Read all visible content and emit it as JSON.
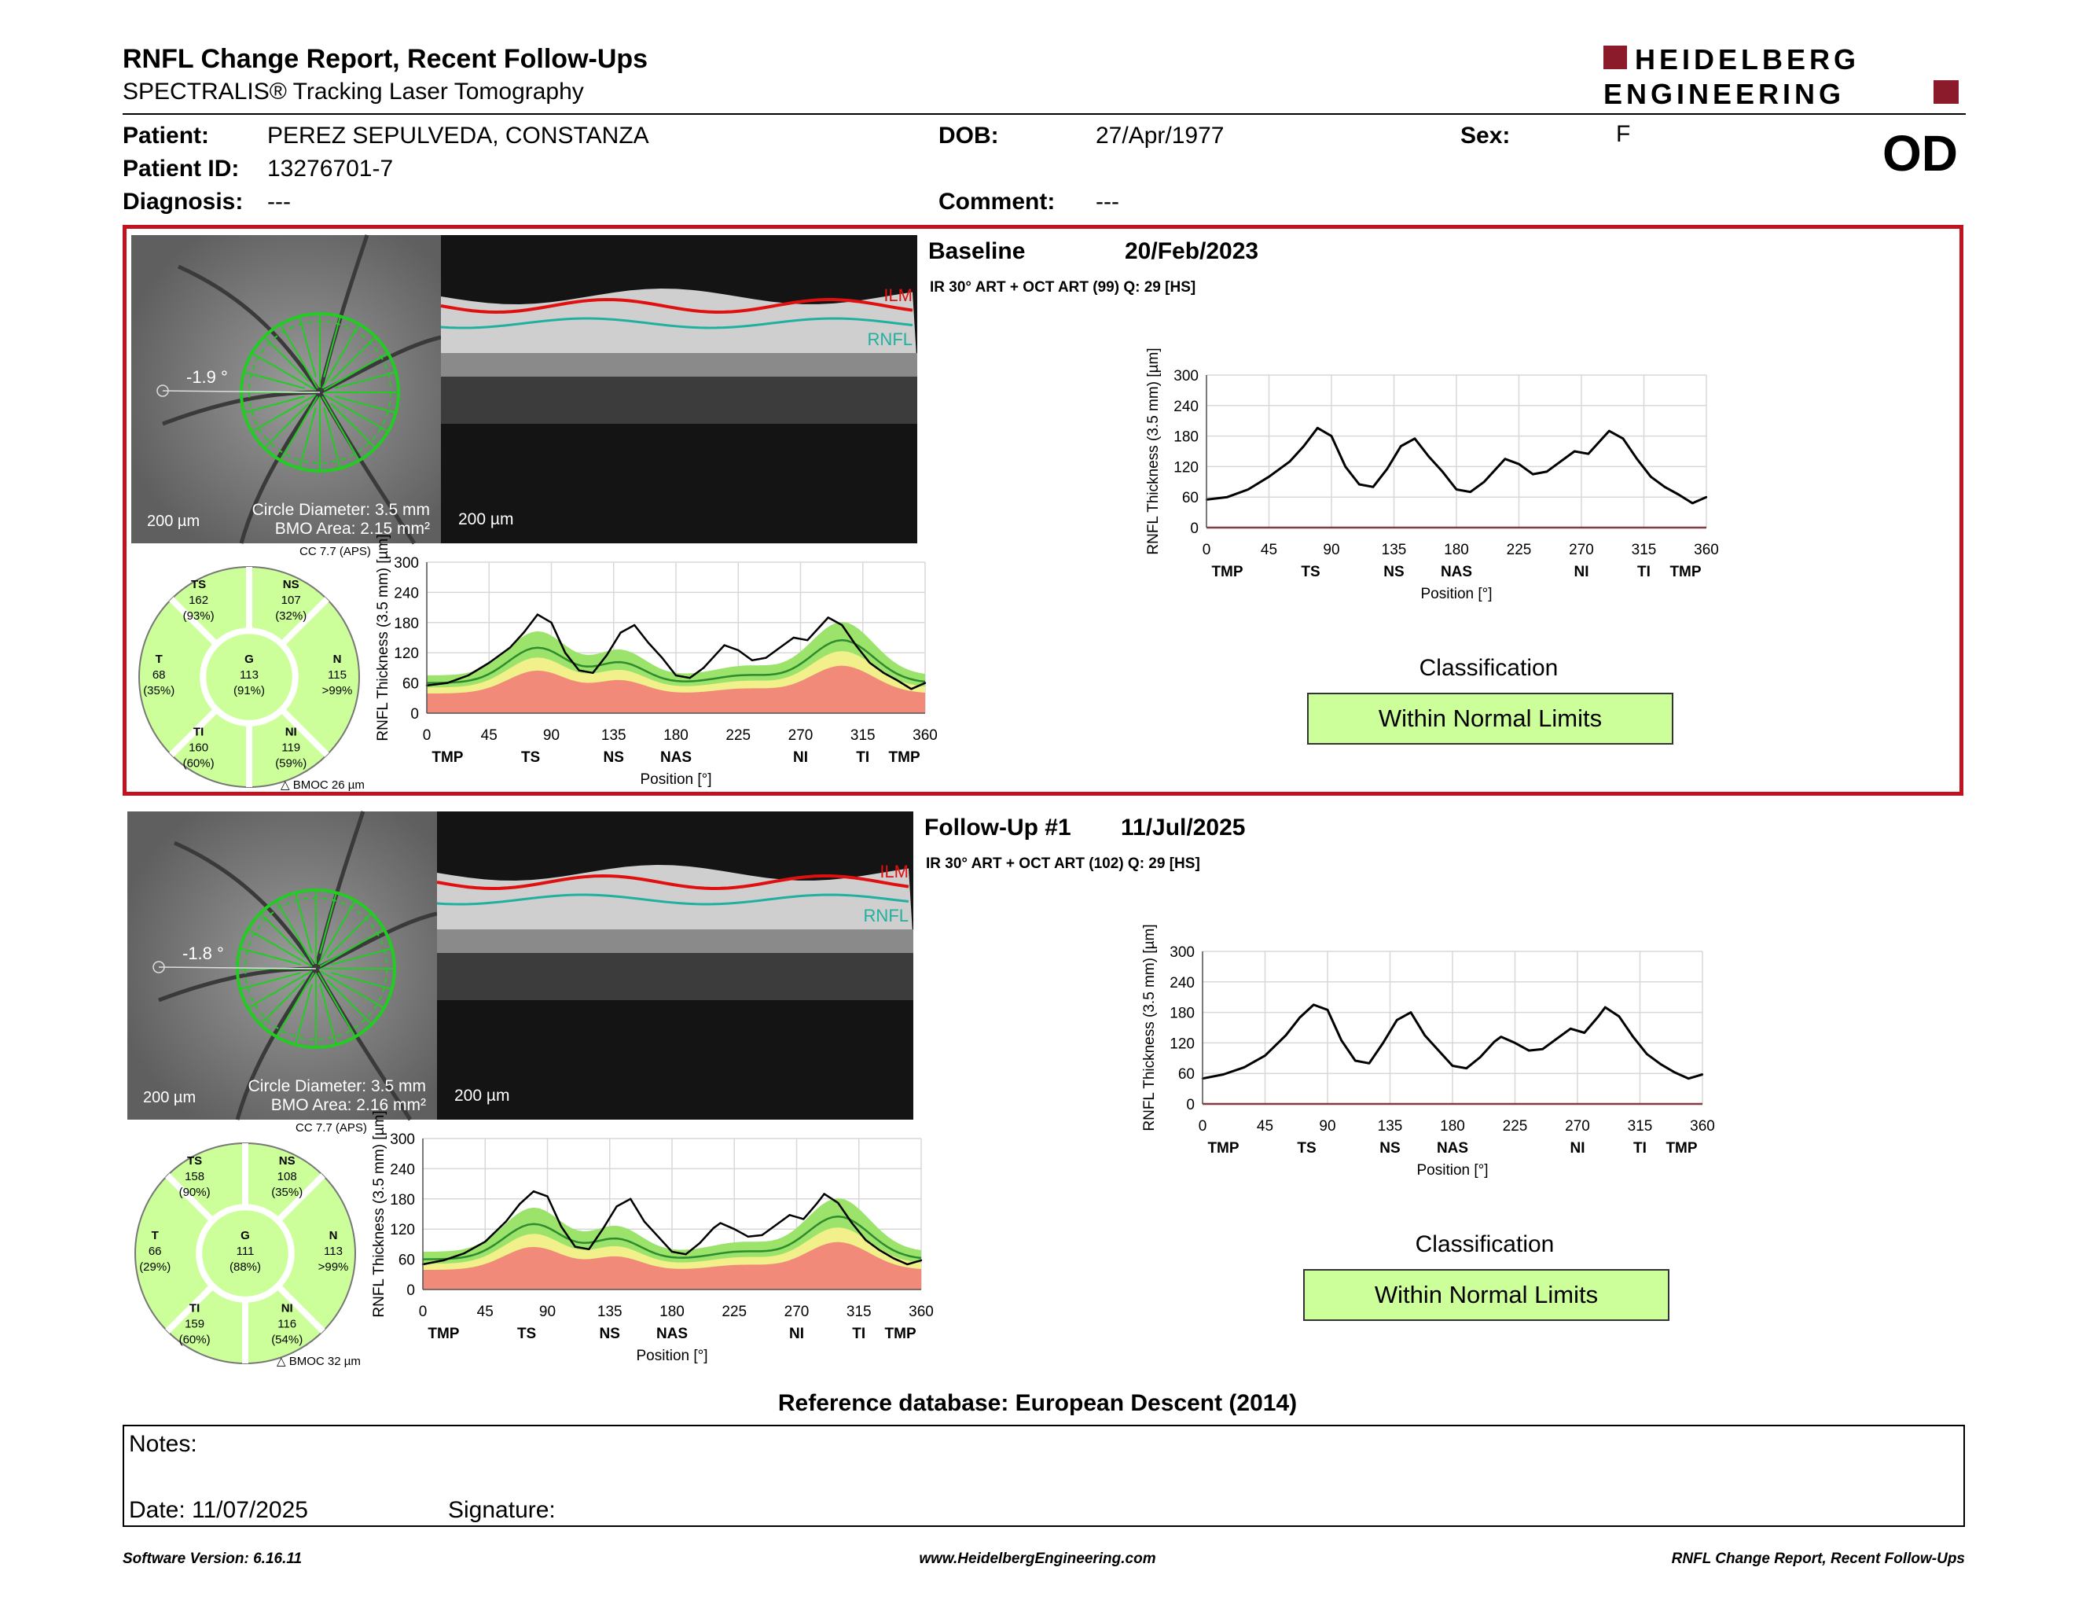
{
  "header": {
    "title": "RNFL Change Report, Recent Follow-Ups",
    "subtitle": "SPECTRALIS® Tracking Laser Tomography",
    "logo_line1": "HEIDELBERG",
    "logo_line2": "ENGINEERING",
    "eye": "OD"
  },
  "patient": {
    "patient_label": "Patient:",
    "patient_name": "PEREZ SEPULVEDA, CONSTANZA",
    "id_label": "Patient ID:",
    "id_value": "13276701-7",
    "diagnosis_label": "Diagnosis:",
    "diagnosis_value": "---",
    "dob_label": "DOB:",
    "dob_value": "27/Apr/1977",
    "comment_label": "Comment:",
    "comment_value": "---",
    "sex_label": "Sex:",
    "sex_value": "F"
  },
  "colors": {
    "frame": "#c1121f",
    "green_band": "#9be36b",
    "yellow_band": "#f2f08a",
    "red_band": "#f28a7a",
    "sector_fill": "#ccff99",
    "ilm": "#e01010",
    "rnfl": "#20b0a0"
  },
  "axes": {
    "y_ticks": [
      "300",
      "240",
      "180",
      "120",
      "60",
      "0"
    ],
    "x_ticks": [
      "0",
      "45",
      "90",
      "135",
      "180",
      "225",
      "270",
      "315",
      "360"
    ],
    "regions": [
      "TMP",
      "TS",
      "NS",
      "NAS",
      "NI",
      "TI",
      "TMP"
    ],
    "ylabel": "RNFL Thickness (3.5 mm) [µm]",
    "xlabel": "Position [°]"
  },
  "visits": [
    {
      "heading": "Baseline",
      "date": "20/Feb/2023",
      "scan_info": "IR 30° ART + OCT ART (99) Q: 29 [HS]",
      "angle": "-1.9 °",
      "scale_fundus": "200 µm",
      "scale_bscan": "200 µm",
      "circle_diameter": "Circle Diameter: 3.5 mm",
      "bmo_area": "BMO Area: 2.15 mm²",
      "cc": "CC 7.7 (APS)",
      "bmoc": "BMOC 26 µm",
      "ilm_label": "ILM",
      "rnfl_label": "RNFL",
      "sectors": {
        "TS": {
          "name": "TS",
          "value": "162",
          "pct": "(93%)"
        },
        "NS": {
          "name": "NS",
          "value": "107",
          "pct": "(32%)"
        },
        "T": {
          "name": "T",
          "value": "68",
          "pct": "(35%)"
        },
        "G": {
          "name": "G",
          "value": "113",
          "pct": "(91%)"
        },
        "N": {
          "name": "N",
          "value": "115",
          "pct": ">99%"
        },
        "TI": {
          "name": "TI",
          "value": "160",
          "pct": "(60%)"
        },
        "NI": {
          "name": "NI",
          "value": "119",
          "pct": "(59%)"
        }
      },
      "classification_label": "Classification",
      "classification": "Within Normal Limits"
    },
    {
      "heading": "Follow-Up #1",
      "date": "11/Jul/2025",
      "scan_info": "IR 30° ART + OCT ART (102) Q: 29 [HS]",
      "angle": "-1.8 °",
      "scale_fundus": "200 µm",
      "scale_bscan": "200 µm",
      "circle_diameter": "Circle Diameter: 3.5 mm",
      "bmo_area": "BMO Area: 2.16 mm²",
      "cc": "CC 7.7 (APS)",
      "bmoc": "BMOC 32 µm",
      "ilm_label": "ILM",
      "rnfl_label": "RNFL",
      "sectors": {
        "TS": {
          "name": "TS",
          "value": "158",
          "pct": "(90%)"
        },
        "NS": {
          "name": "NS",
          "value": "108",
          "pct": "(35%)"
        },
        "T": {
          "name": "T",
          "value": "66",
          "pct": "(29%)"
        },
        "G": {
          "name": "G",
          "value": "111",
          "pct": "(88%)"
        },
        "N": {
          "name": "N",
          "value": "113",
          "pct": ">99%"
        },
        "TI": {
          "name": "TI",
          "value": "159",
          "pct": "(60%)"
        },
        "NI": {
          "name": "NI",
          "value": "116",
          "pct": "(54%)"
        }
      },
      "classification_label": "Classification",
      "classification": "Within Normal Limits"
    }
  ],
  "chart_data": [
    {
      "type": "line",
      "title": "",
      "xlabel": "Position [°]",
      "ylabel": "RNFL Thickness (3.5 mm) [µm]",
      "xlim": [
        0,
        360
      ],
      "ylim": [
        0,
        300
      ],
      "x": [
        0,
        15,
        30,
        45,
        60,
        70,
        80,
        90,
        100,
        110,
        120,
        130,
        140,
        150,
        160,
        170,
        180,
        190,
        200,
        210,
        215,
        225,
        235,
        245,
        255,
        265,
        275,
        285,
        290,
        300,
        310,
        320,
        330,
        340,
        350,
        360
      ],
      "series": [
        {
          "values": [
            55,
            60,
            75,
            100,
            130,
            160,
            196,
            180,
            120,
            85,
            80,
            115,
            160,
            175,
            140,
            110,
            75,
            70,
            90,
            120,
            135,
            125,
            105,
            110,
            130,
            150,
            145,
            175,
            190,
            175,
            135,
            100,
            80,
            65,
            48,
            60
          ]
        }
      ]
    },
    {
      "type": "line",
      "title": "",
      "xlabel": "Position [°]",
      "ylabel": "RNFL Thickness (3.5 mm) [µm]",
      "xlim": [
        0,
        360
      ],
      "ylim": [
        0,
        300
      ],
      "x": [
        0,
        15,
        30,
        45,
        60,
        70,
        80,
        90,
        100,
        110,
        120,
        130,
        140,
        150,
        160,
        170,
        180,
        190,
        200,
        210,
        215,
        225,
        235,
        245,
        255,
        265,
        275,
        285,
        290,
        300,
        310,
        320,
        330,
        340,
        350,
        360
      ],
      "series": [
        {
          "values": [
            50,
            58,
            72,
            95,
            135,
            170,
            195,
            185,
            125,
            85,
            80,
            120,
            165,
            180,
            135,
            105,
            75,
            70,
            92,
            122,
            132,
            120,
            105,
            108,
            128,
            148,
            140,
            172,
            190,
            172,
            132,
            98,
            78,
            62,
            50,
            58
          ]
        }
      ]
    }
  ],
  "footer": {
    "reference": "Reference database: European Descent (2014)",
    "notes_label": "Notes:",
    "date_label": "Date: 11/07/2025",
    "signature_label": "Signature:",
    "software": "Software Version: 6.16.11",
    "website": "www.HeidelbergEngineering.com",
    "report_name": "RNFL Change Report, Recent Follow-Ups"
  }
}
